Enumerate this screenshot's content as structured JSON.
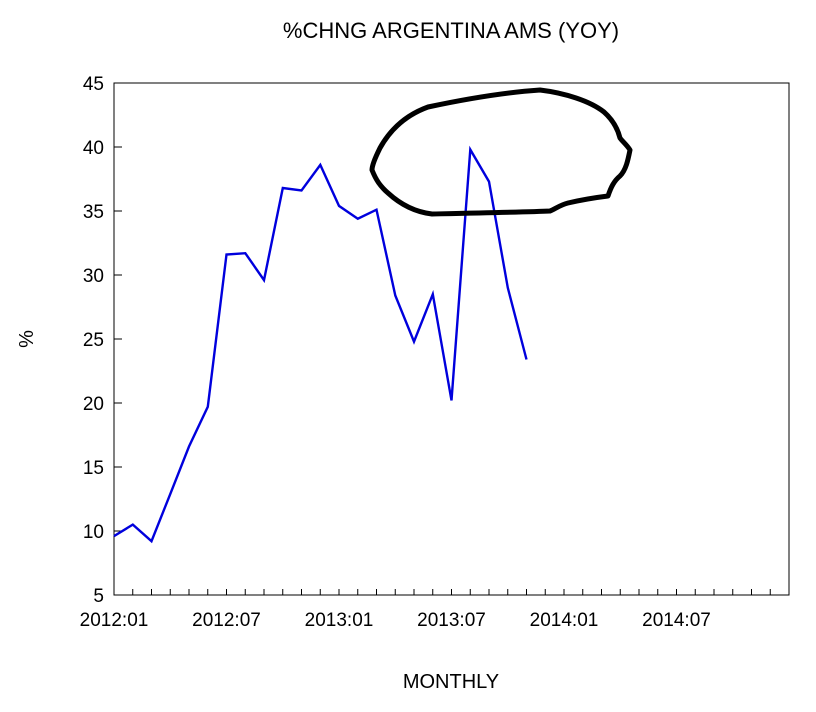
{
  "chart_data": {
    "type": "line",
    "title": "%CHNG ARGENTINA AMS (YOY)",
    "xlabel": "MONTHLY",
    "ylabel": "%",
    "ylim": [
      5,
      45
    ],
    "yticks": [
      5,
      10,
      15,
      20,
      25,
      30,
      35,
      40,
      45
    ],
    "x_tick_labels": [
      "2012:01",
      "2012:07",
      "2013:01",
      "2013:07",
      "2014:01",
      "2014:07"
    ],
    "x_range": [
      "2012:01",
      "2014:12"
    ],
    "grid": false,
    "legend": "none",
    "series": [
      {
        "color": "#0000dd",
        "x": [
          "2012:01",
          "2012:02",
          "2012:03",
          "2012:04",
          "2012:05",
          "2012:06",
          "2012:07",
          "2012:08",
          "2012:09",
          "2012:10",
          "2012:11",
          "2012:12",
          "2013:01",
          "2013:02",
          "2013:03",
          "2013:04",
          "2013:05",
          "2013:06",
          "2013:07",
          "2013:08",
          "2013:09",
          "2013:10",
          "2013:11"
        ],
        "values": [
          9.6,
          10.5,
          9.2,
          12.9,
          16.6,
          19.7,
          31.6,
          31.7,
          29.6,
          36.8,
          36.6,
          38.6,
          35.4,
          34.4,
          35.1,
          28.4,
          24.8,
          28.5,
          20.2,
          39.8,
          37.3,
          29.0,
          23.4
        ]
      }
    ],
    "annotation": {
      "type": "hand-drawn-loop",
      "color": "#000000"
    }
  }
}
